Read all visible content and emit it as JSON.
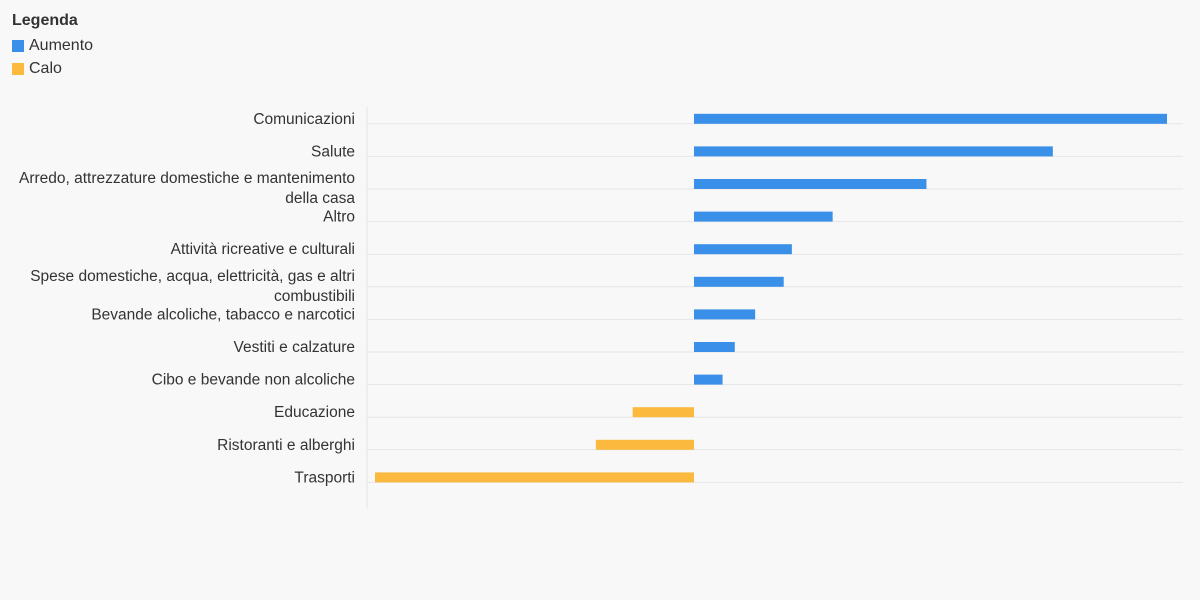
{
  "legend": {
    "title": "Legenda",
    "items": [
      {
        "label": "Aumento",
        "color": "#3a8fe8"
      },
      {
        "label": "Calo",
        "color": "#fbb93e"
      }
    ]
  },
  "chart_data": {
    "type": "bar",
    "orientation": "horizontal",
    "categories": [
      "Comunicazioni",
      "Salute",
      "Arredo, attrezzature domestiche e mantenimento della casa",
      "Altro",
      "Attività ricreative e culturali",
      "Spese domestiche, acqua, elettricità, gas e altri combustibili",
      "Bevande alcoliche, tabacco e narcotici",
      "Vestiti e calzature",
      "Cibo e bevande non alcoliche",
      "Educazione",
      "Ristoranti e alberghi",
      "Trasporti"
    ],
    "category_label_lines": [
      [
        "Comunicazioni"
      ],
      [
        "Salute"
      ],
      [
        "Arredo, attrezzature domestiche e mantenimento",
        "della casa"
      ],
      [
        "Altro"
      ],
      [
        "Attività ricreative e culturali"
      ],
      [
        "Spese domestiche, acqua, elettricità, gas e altri",
        "combustibili"
      ],
      [
        "Bevande alcoliche, tabacco e narcotici"
      ],
      [
        "Vestiti e calzature"
      ],
      [
        "Cibo e bevande non alcoliche"
      ],
      [
        "Educazione"
      ],
      [
        "Ristoranti e alberghi"
      ],
      [
        "Trasporti"
      ]
    ],
    "values": [
      11.6,
      8.8,
      5.7,
      3.4,
      2.4,
      2.2,
      1.5,
      1.0,
      0.7,
      -1.5,
      -2.4,
      -7.8
    ],
    "series": [
      {
        "name": "Aumento",
        "color": "#3a8fe8"
      },
      {
        "name": "Calo",
        "color": "#fbb93e"
      }
    ],
    "xlim": [
      -8.0,
      12.0
    ],
    "grid": true,
    "legend_position": "top-left"
  }
}
